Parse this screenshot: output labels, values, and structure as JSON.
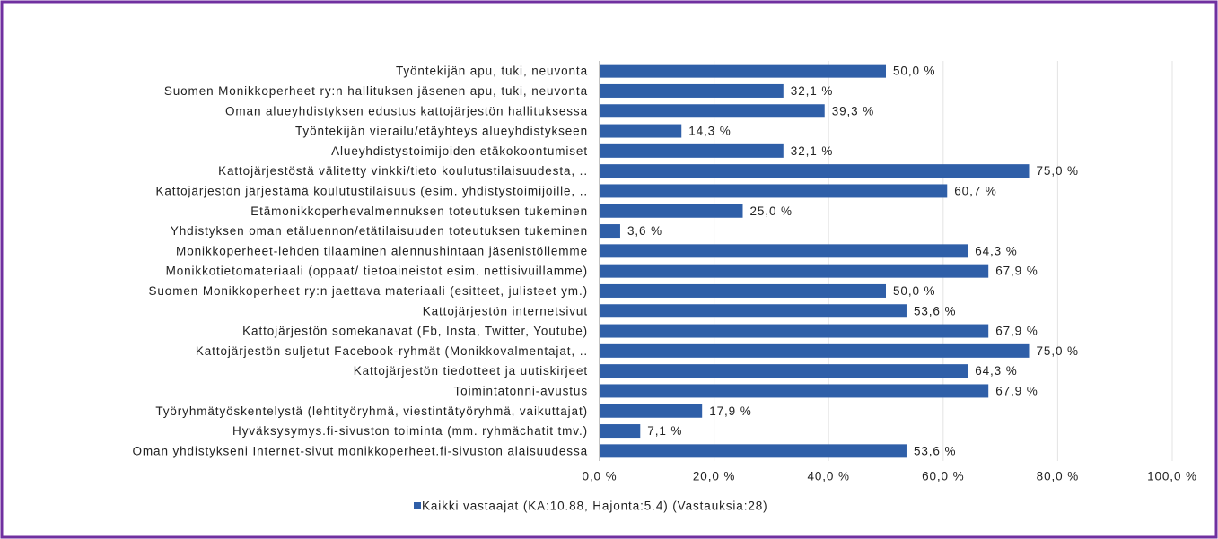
{
  "chart_data": {
    "type": "hbar",
    "categories": [
      "Työntekijän apu, tuki, neuvonta",
      "Suomen Monikkoperheet ry:n hallituksen jäsenen apu, tuki, neuvonta",
      "Oman alueyhdistyksen edustus kattojärjestön hallituksessa",
      "Työntekijän vierailu/etäyhteys alueyhdistykseen",
      "Alueyhdistystoimijoiden etäkokoontumiset",
      "Kattojärjestöstä välitetty vinkki/tieto koulutustilaisuudesta, ..",
      "Kattojärjestön järjestämä koulutustilaisuus (esim. yhdistystoimijoille, ..",
      "Etämonikkoperhevalmennuksen toteutuksen tukeminen",
      "Yhdistyksen oman etäluennon/etätilaisuuden toteutuksen tukeminen",
      "Monikkoperheet-lehden tilaaminen alennushintaan jäsenistöllemme",
      "Monikkotietomateriaali (oppaat/ tietoaineistot esim. nettisivuillamme)",
      "Suomen Monikkoperheet ry:n jaettava materiaali (esitteet, julisteet ym.)",
      "Kattojärjestön internetsivut",
      "Kattojärjestön somekanavat (Fb, Insta, Twitter, Youtube)",
      "Kattojärjestön suljetut Facebook-ryhmät (Monikkovalmentajat, ..",
      "Kattojärjestön tiedotteet ja uutiskirjeet",
      "Toimintatonni-avustus",
      "Työryhmätyöskentelystä (lehtityöryhmä, viestintätyöryhmä, vaikuttajat)",
      "Hyväksysymys.fi-sivuston toiminta (mm. ryhmächatit tmv.)",
      "Oman yhdistykseni Internet-sivut monikkoperheet.fi-sivuston alaisuudessa"
    ],
    "series": [
      {
        "name": "Kaikki vastaajat (KA:10.88, Hajonta:5.4) (Vastauksia:28)",
        "color": "#2f5fa8",
        "values": [
          50.0,
          32.1,
          39.3,
          14.3,
          32.1,
          75.0,
          60.7,
          25.0,
          3.6,
          64.3,
          67.9,
          50.0,
          53.6,
          67.9,
          75.0,
          64.3,
          67.9,
          17.9,
          7.1,
          53.6
        ],
        "value_labels": [
          "50,0 %",
          "32,1 %",
          "39,3 %",
          "14,3 %",
          "32,1 %",
          "75,0 %",
          "60,7 %",
          "25,0 %",
          "3,6 %",
          "64,3 %",
          "67,9 %",
          "50,0 %",
          "53,6 %",
          "67,9 %",
          "75,0 %",
          "64,3 %",
          "67,9 %",
          "17,9 %",
          "7,1 %",
          "53,6 %"
        ]
      }
    ],
    "xlim": [
      0,
      100
    ],
    "xticks": [
      {
        "value": 0,
        "label": "0,0 %"
      },
      {
        "value": 20,
        "label": "20,0 %"
      },
      {
        "value": 40,
        "label": "40,0 %"
      },
      {
        "value": 60,
        "label": "60,0 %"
      },
      {
        "value": 80,
        "label": "80,0 %"
      },
      {
        "value": 100,
        "label": "100,0 %"
      }
    ],
    "grid": true,
    "legend": "bottom"
  }
}
